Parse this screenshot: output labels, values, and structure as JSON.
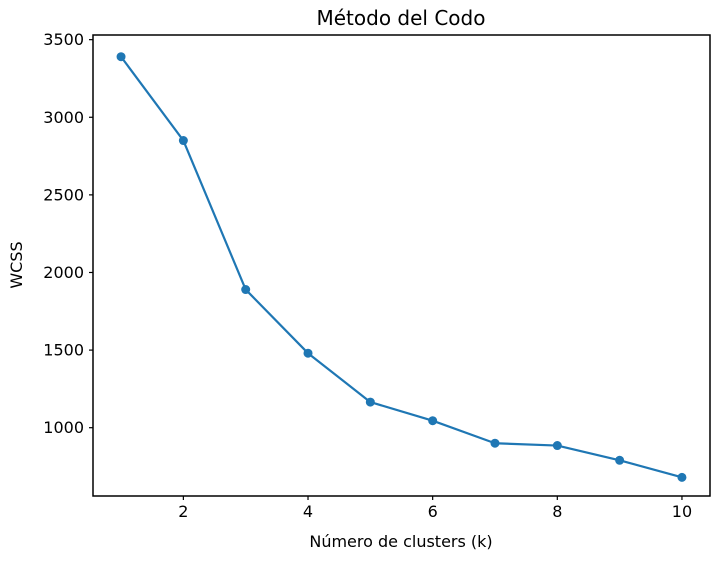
{
  "chart_data": {
    "type": "line",
    "title": "Método del Codo",
    "xlabel": "Número de clusters (k)",
    "ylabel": "WCSS",
    "x": [
      1,
      2,
      3,
      4,
      5,
      6,
      7,
      8,
      9,
      10
    ],
    "series": [
      {
        "name": "WCSS",
        "values": [
          3390,
          2850,
          1890,
          1480,
          1165,
          1045,
          900,
          885,
          790,
          680
        ]
      }
    ],
    "xticks": [
      2,
      4,
      6,
      8,
      10
    ],
    "yticks": [
      1000,
      1500,
      2000,
      2500,
      3000,
      3500
    ],
    "xlim": [
      0.55,
      10.45
    ],
    "ylim": [
      560,
      3530
    ],
    "grid": false,
    "legend_position": "none",
    "line_color": "#1f77b4",
    "marker": "o",
    "spine_color": "#000000",
    "background_color": "#ffffff",
    "text_color": "#000000"
  }
}
